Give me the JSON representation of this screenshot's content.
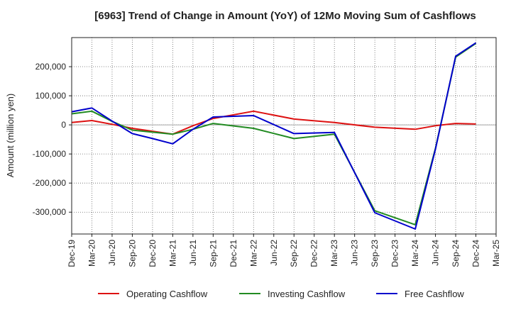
{
  "chart_data": {
    "type": "line",
    "title": "[6963]  Trend of Change in Amount (YoY) of 12Mo Moving Sum of Cashflows",
    "xlabel": "",
    "ylabel": "Amount (million yen)",
    "ylim": [
      -375000,
      300000
    ],
    "y_ticks": [
      -300000,
      -200000,
      -100000,
      0,
      100000,
      200000
    ],
    "y_tick_labels": [
      "-300,000",
      "-200,000",
      "-100,000",
      "0",
      "100,000",
      "200,000"
    ],
    "x_tick_labels": [
      "Dec-19",
      "Mar-20",
      "Jun-20",
      "Sep-20",
      "Dec-20",
      "Mar-21",
      "Jun-21",
      "Sep-21",
      "Dec-21",
      "Mar-22",
      "Jun-22",
      "Sep-22",
      "Dec-22",
      "Mar-23",
      "Jun-23",
      "Sep-23",
      "Dec-23",
      "Mar-24",
      "Jun-24",
      "Sep-24",
      "Dec-24",
      "Mar-25"
    ],
    "grid": true,
    "legend_position": "bottom",
    "series": [
      {
        "name": "Operating Cashflow",
        "color": "#dd1111",
        "points": [
          [
            0,
            8000
          ],
          [
            1,
            15000
          ],
          [
            2,
            2000
          ],
          [
            3,
            -12000
          ],
          [
            4,
            -22000
          ],
          [
            5,
            -32000
          ],
          [
            6,
            -3000
          ],
          [
            7,
            22000
          ],
          [
            9,
            47000
          ],
          [
            11,
            20000
          ],
          [
            13,
            8000
          ],
          [
            15,
            -8000
          ],
          [
            17,
            -15000
          ],
          [
            18,
            -3000
          ],
          [
            19,
            5000
          ],
          [
            20,
            3000
          ]
        ]
      },
      {
        "name": "Investing Cashflow",
        "color": "#228b22",
        "points": [
          [
            0,
            38000
          ],
          [
            1,
            47000
          ],
          [
            2,
            12000
          ],
          [
            3,
            -18000
          ],
          [
            4,
            -25000
          ],
          [
            5,
            -32000
          ],
          [
            6,
            -15000
          ],
          [
            7,
            5000
          ],
          [
            9,
            -12000
          ],
          [
            11,
            -47000
          ],
          [
            13,
            -32000
          ],
          [
            15,
            -295000
          ],
          [
            17,
            -343000
          ],
          [
            18,
            -80000
          ],
          [
            19,
            233000
          ],
          [
            20,
            280000
          ]
        ]
      },
      {
        "name": "Free Cashflow",
        "color": "#0000cc",
        "points": [
          [
            0,
            45000
          ],
          [
            1,
            58000
          ],
          [
            2,
            13000
          ],
          [
            3,
            -30000
          ],
          [
            4,
            -47000
          ],
          [
            5,
            -65000
          ],
          [
            6,
            -15000
          ],
          [
            7,
            27000
          ],
          [
            9,
            32000
          ],
          [
            11,
            -30000
          ],
          [
            13,
            -26000
          ],
          [
            15,
            -302000
          ],
          [
            17,
            -358000
          ],
          [
            18,
            -83000
          ],
          [
            19,
            236000
          ],
          [
            20,
            282000
          ]
        ]
      }
    ]
  }
}
